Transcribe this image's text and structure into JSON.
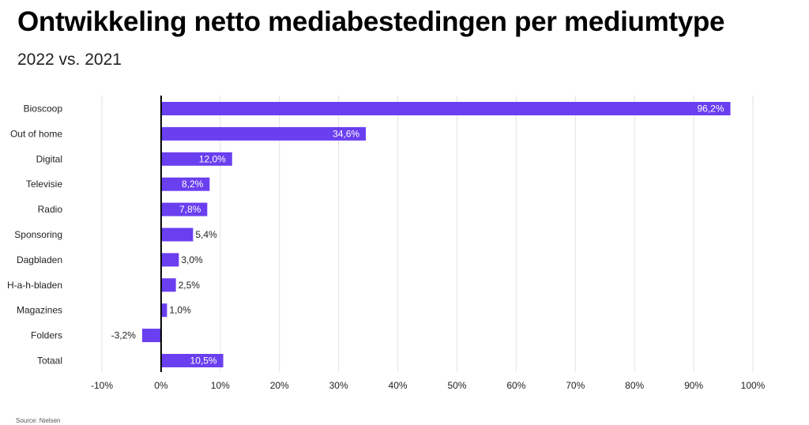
{
  "header": {
    "title": "Ontwikkeling netto mediabestedingen per mediumtype",
    "subtitle": "2022 vs. 2021"
  },
  "footer": {
    "source": "Source: Nielsen"
  },
  "colors": {
    "bar": "#6a3ff0",
    "grid": "#e2e2e2",
    "zero_line": "#000000"
  },
  "chart_data": {
    "type": "bar",
    "orientation": "horizontal",
    "categories": [
      "Bioscoop",
      "Out of home",
      "Digital",
      "Televisie",
      "Radio",
      "Sponsoring",
      "Dagbladen",
      "H-a-h-bladen",
      "Magazines",
      "Folders",
      "Totaal"
    ],
    "values": [
      96.2,
      34.6,
      12.0,
      8.2,
      7.8,
      5.4,
      3.0,
      2.5,
      1.0,
      -3.2,
      10.5
    ],
    "value_labels": [
      "96,2%",
      "34,6%",
      "12,0%",
      "8,2%",
      "7,8%",
      "5,4%",
      "3,0%",
      "2,5%",
      "1,0%",
      "-3,2%",
      "10,5%"
    ],
    "xlim": [
      -10,
      100
    ],
    "xticks": [
      -10,
      0,
      10,
      20,
      30,
      40,
      50,
      60,
      70,
      80,
      90,
      100
    ],
    "xtick_labels": [
      "-10%",
      "0%",
      "10%",
      "20%",
      "30%",
      "40%",
      "50%",
      "60%",
      "70%",
      "80%",
      "90%",
      "100%"
    ],
    "grid": true,
    "legend": "none"
  }
}
